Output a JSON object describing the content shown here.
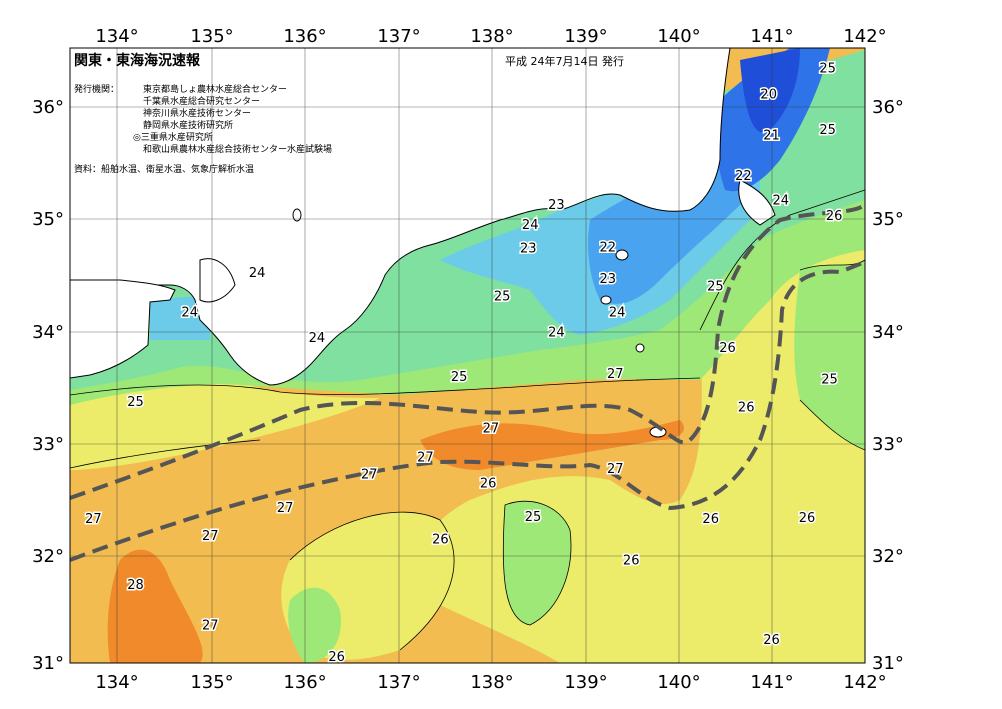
{
  "header": {
    "title": "関東・東海海況速報",
    "date": "平成 24年7月14日 発行",
    "issuer_label": "発行機関：",
    "issuers": [
      "東京都島しょ農林水産総合センター",
      "千葉県水産総合研究センター",
      "神奈川県水産技術センター",
      "静岡県水産技術研究所",
      "◎三重県水産研究所",
      "和歌山県農林水産総合技術センター水産試験場"
    ],
    "source": "資料：船舶水温、衛星水温、気象庁解析水温"
  },
  "axes": {
    "lon_labels": [
      "134°",
      "135°",
      "136°",
      "137°",
      "138°",
      "139°",
      "140°",
      "141°",
      "142°"
    ],
    "lat_labels": [
      "36°",
      "35°",
      "34°",
      "33°",
      "32°",
      "31°"
    ]
  },
  "map": {
    "lon_range": [
      133.5,
      142.0
    ],
    "lat_range": [
      31.0,
      36.5
    ],
    "colors": {
      "t20": "#1f4fd8",
      "t21": "#2e74e8",
      "t22": "#4aa3ee",
      "t23": "#6ccbe8",
      "t24": "#7fe0a0",
      "t25": "#9ee878",
      "t26": "#ecec6a",
      "t27": "#f2bc50",
      "t28": "#f08a2a",
      "land": "#ffffff",
      "kuroshio": "#555555"
    },
    "isotherm_labels": [
      {
        "text": "20",
        "lon": 140.97,
        "lat": 36.05
      },
      {
        "text": "21",
        "lon": 141.0,
        "lat": 35.68
      },
      {
        "text": "22",
        "lon": 140.7,
        "lat": 35.32
      },
      {
        "text": "23",
        "lon": 138.7,
        "lat": 35.06
      },
      {
        "text": "22",
        "lon": 139.25,
        "lat": 34.68
      },
      {
        "text": "23",
        "lon": 139.25,
        "lat": 34.4
      },
      {
        "text": "23",
        "lon": 138.4,
        "lat": 34.67
      },
      {
        "text": "24",
        "lon": 138.42,
        "lat": 34.88
      },
      {
        "text": "24",
        "lon": 141.1,
        "lat": 35.1
      },
      {
        "text": "25",
        "lon": 141.6,
        "lat": 36.28
      },
      {
        "text": "25",
        "lon": 141.6,
        "lat": 35.73
      },
      {
        "text": "24",
        "lon": 135.5,
        "lat": 34.45
      },
      {
        "text": "24",
        "lon": 139.35,
        "lat": 34.1
      },
      {
        "text": "24",
        "lon": 138.7,
        "lat": 33.92
      },
      {
        "text": "24",
        "lon": 134.78,
        "lat": 34.1
      },
      {
        "text": "24",
        "lon": 136.14,
        "lat": 33.87
      },
      {
        "text": "25",
        "lon": 138.12,
        "lat": 34.24
      },
      {
        "text": "25",
        "lon": 140.4,
        "lat": 34.33
      },
      {
        "text": "26",
        "lon": 141.67,
        "lat": 34.96
      },
      {
        "text": "26",
        "lon": 140.53,
        "lat": 33.78
      },
      {
        "text": "26",
        "lon": 140.73,
        "lat": 33.25
      },
      {
        "text": "25",
        "lon": 141.62,
        "lat": 33.5
      },
      {
        "text": "25",
        "lon": 137.66,
        "lat": 33.52
      },
      {
        "text": "25",
        "lon": 134.2,
        "lat": 33.3
      },
      {
        "text": "27",
        "lon": 139.33,
        "lat": 33.55
      },
      {
        "text": "27",
        "lon": 138.0,
        "lat": 33.06
      },
      {
        "text": "27",
        "lon": 137.3,
        "lat": 32.8
      },
      {
        "text": "27",
        "lon": 136.7,
        "lat": 32.65
      },
      {
        "text": "27",
        "lon": 139.33,
        "lat": 32.7
      },
      {
        "text": "26",
        "lon": 137.97,
        "lat": 32.57
      },
      {
        "text": "27",
        "lon": 135.8,
        "lat": 32.35
      },
      {
        "text": "27",
        "lon": 133.75,
        "lat": 32.25
      },
      {
        "text": "27",
        "lon": 135.0,
        "lat": 32.1
      },
      {
        "text": "25",
        "lon": 138.45,
        "lat": 32.27
      },
      {
        "text": "26",
        "lon": 137.46,
        "lat": 32.07
      },
      {
        "text": "26",
        "lon": 140.35,
        "lat": 32.25
      },
      {
        "text": "26",
        "lon": 141.38,
        "lat": 32.26
      },
      {
        "text": "26",
        "lon": 139.5,
        "lat": 31.88
      },
      {
        "text": "28",
        "lon": 134.2,
        "lat": 31.66
      },
      {
        "text": "27",
        "lon": 135.0,
        "lat": 31.3
      },
      {
        "text": "26",
        "lon": 136.35,
        "lat": 31.02
      },
      {
        "text": "26",
        "lon": 141.0,
        "lat": 31.17
      }
    ]
  }
}
